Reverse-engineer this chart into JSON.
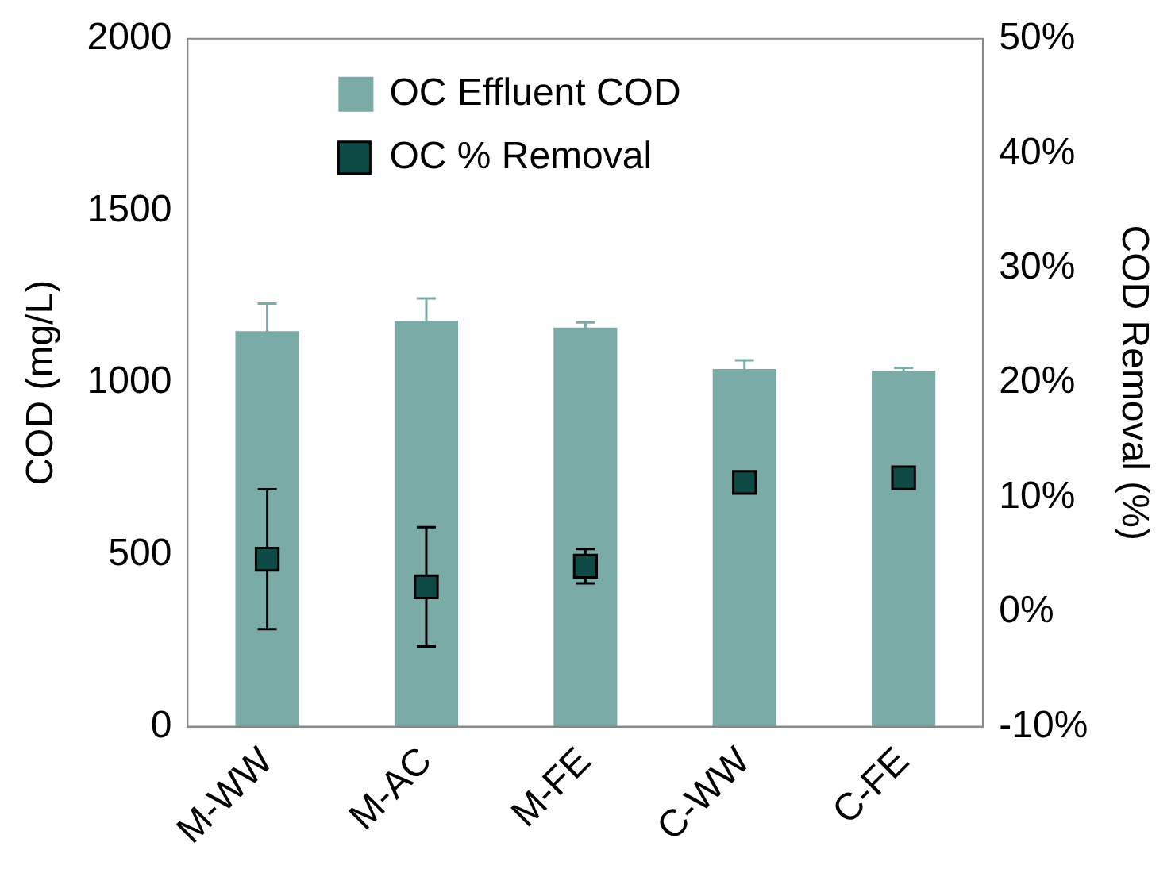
{
  "chart_data": {
    "type": "bar",
    "categories": [
      "M-WW",
      "M-AC",
      "M-FE",
      "C-WW",
      "C-FE"
    ],
    "ylabel": "COD (mg/L)",
    "y2label": "COD Removal (%)",
    "ylim": [
      0,
      2000
    ],
    "yticks": [
      0,
      500,
      1000,
      1500,
      2000
    ],
    "y2lim": [
      -10,
      50
    ],
    "y2ticks": [
      {
        "value": -10,
        "label": "-10%"
      },
      {
        "value": 0,
        "label": "0%"
      },
      {
        "value": 10,
        "label": "10%"
      },
      {
        "value": 20,
        "label": "20%"
      },
      {
        "value": 30,
        "label": "30%"
      },
      {
        "value": 40,
        "label": "40%"
      },
      {
        "value": 50,
        "label": "50%"
      }
    ],
    "legend": "top",
    "grid": false,
    "series": [
      {
        "name": "OC Effluent COD",
        "color": "#7aaba7",
        "values": [
          1150,
          1180,
          1160,
          1040,
          1035
        ],
        "errors": [
          80,
          65,
          15,
          25,
          8
        ]
      },
      {
        "name": "OC % Removal",
        "type": "scatter",
        "axis": "y2",
        "marker": "square",
        "color": "#0e4a45",
        "values": [
          4.6,
          2.2,
          4.0,
          11.3,
          11.7
        ],
        "errors": [
          6.1,
          5.2,
          1.5,
          null,
          null
        ]
      }
    ]
  }
}
